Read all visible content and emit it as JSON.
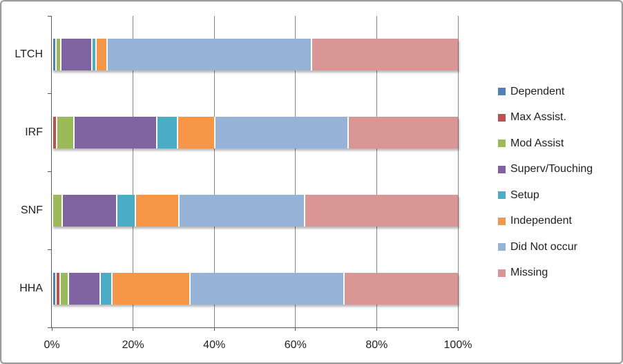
{
  "chart_data": {
    "type": "bar",
    "orientation": "horizontal",
    "stacked": true,
    "title": "",
    "xlabel": "",
    "ylabel": "",
    "categories": [
      "LTCH",
      "IRF",
      "SNF",
      "HHA"
    ],
    "series": [
      {
        "name": "Dependent",
        "color": "#4F81BD",
        "values": [
          0.8,
          0.0,
          0.0,
          0.9
        ]
      },
      {
        "name": "Max Assist.",
        "color": "#C0504D",
        "values": [
          0.0,
          1.0,
          0.0,
          0.9
        ]
      },
      {
        "name": "Mod Assist",
        "color": "#9BBB59",
        "values": [
          1.2,
          4.3,
          2.4,
          2.1
        ]
      },
      {
        "name": "Superv/Touching",
        "color": "#8064A2",
        "values": [
          7.7,
          20.4,
          13.4,
          7.9
        ]
      },
      {
        "name": "Setup",
        "color": "#4BACC6",
        "values": [
          1.1,
          5.1,
          4.6,
          2.8
        ]
      },
      {
        "name": "Independent",
        "color": "#F79646",
        "values": [
          2.6,
          9.1,
          10.8,
          19.3
        ]
      },
      {
        "name": "Did Not occur",
        "color": "#95B3D7",
        "values": [
          50.3,
          32.9,
          30.9,
          37.9
        ]
      },
      {
        "name": "Missing",
        "color": "#D99694",
        "values": [
          36.3,
          27.2,
          37.9,
          28.2
        ]
      }
    ],
    "x_axis": {
      "min": 0,
      "max": 100,
      "tick_step": 20,
      "tick_labels": [
        "0%",
        "20%",
        "40%",
        "60%",
        "80%",
        "100%"
      ]
    },
    "grid": true,
    "legend_position": "right",
    "style": {
      "gridline_color": "#878787",
      "axis_color": "#595959",
      "text_color": "#1f1f1f",
      "frame_border_color": "#9b9b9b",
      "background": "#ffffff",
      "segment_gap_color": "#ffffff"
    }
  }
}
